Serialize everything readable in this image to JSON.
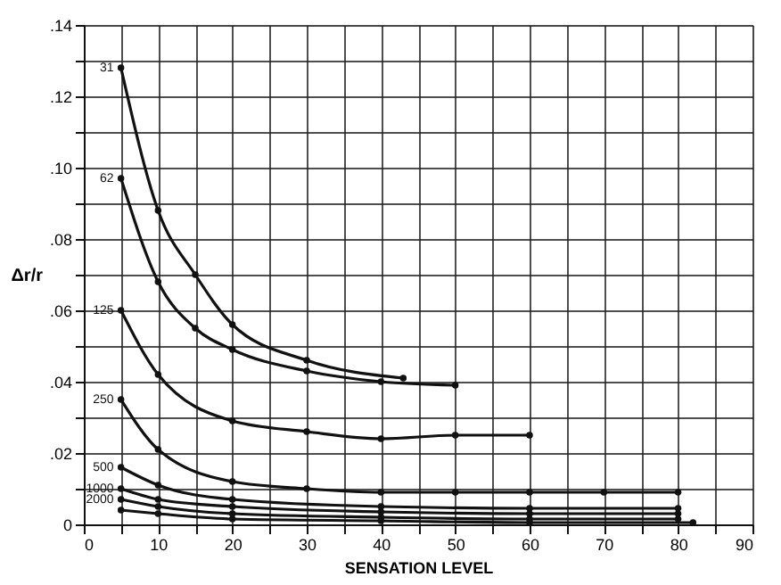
{
  "chart_data": {
    "type": "line",
    "xlabel": "SENSATION LEVEL",
    "ylabel": "Δr/r",
    "xlim": [
      0,
      90
    ],
    "ylim": [
      0,
      0.14
    ],
    "xticks": [
      0,
      {
        "value": 5,
        "label": null
      },
      10,
      {
        "value": 15,
        "label": null
      },
      20,
      {
        "value": 25,
        "label": null
      },
      30,
      {
        "value": 35,
        "label": null
      },
      40,
      {
        "value": 45,
        "label": null
      },
      50,
      {
        "value": 55,
        "label": null
      },
      60,
      {
        "value": 65,
        "label": null
      },
      70,
      {
        "value": 75,
        "label": null
      },
      80,
      {
        "value": 85,
        "label": null
      },
      90
    ],
    "yticks": [
      0,
      {
        "value": 0.01,
        "label": null
      },
      {
        "value": 0.02,
        "label": ".02"
      },
      {
        "value": 0.03,
        "label": null
      },
      {
        "value": 0.04,
        "label": ".04"
      },
      {
        "value": 0.05,
        "label": null
      },
      {
        "value": 0.06,
        "label": ".06"
      },
      {
        "value": 0.07,
        "label": null
      },
      {
        "value": 0.08,
        "label": ".08"
      },
      {
        "value": 0.09,
        "label": null
      },
      {
        "value": 0.1,
        "label": ".10"
      },
      {
        "value": 0.11,
        "label": null
      },
      {
        "value": 0.12,
        "label": ".12"
      },
      {
        "value": 0.13,
        "label": null
      },
      {
        "value": 0.14,
        "label": ".14"
      }
    ],
    "grid": true,
    "marker": "circle",
    "line_style": "solid",
    "series": [
      {
        "name": "31",
        "color": "#111111",
        "x": [
          5,
          10,
          15,
          20,
          30,
          43
        ],
        "values": [
          0.128,
          0.088,
          0.07,
          0.056,
          0.046,
          0.041
        ]
      },
      {
        "name": "62",
        "color": "#111111",
        "x": [
          5,
          10,
          15,
          20,
          30,
          40,
          50
        ],
        "values": [
          0.097,
          0.068,
          0.055,
          0.049,
          0.043,
          0.04,
          0.039
        ]
      },
      {
        "name": "125",
        "color": "#111111",
        "x": [
          5,
          10,
          20,
          30,
          40,
          50,
          60
        ],
        "values": [
          0.06,
          0.042,
          0.029,
          0.026,
          0.024,
          0.025,
          0.025
        ]
      },
      {
        "name": "250",
        "color": "#111111",
        "x": [
          5,
          10,
          20,
          30,
          40,
          50,
          60,
          70,
          80
        ],
        "values": [
          0.035,
          0.021,
          0.012,
          0.01,
          0.009,
          0.009,
          0.009,
          0.009,
          0.009
        ]
      },
      {
        "name": "500",
        "color": "#111111",
        "x": [
          5,
          10,
          20,
          40,
          60,
          80
        ],
        "values": [
          0.016,
          0.011,
          0.007,
          0.005,
          0.0045,
          0.0045
        ]
      },
      {
        "name": "1000",
        "color": "#111111",
        "x": [
          5,
          10,
          20,
          40,
          60,
          80
        ],
        "values": [
          0.01,
          0.007,
          0.005,
          0.0035,
          0.003,
          0.003
        ]
      },
      {
        "name": "2000",
        "color": "#111111",
        "x": [
          5,
          10,
          20,
          40,
          60,
          80
        ],
        "values": [
          0.007,
          0.005,
          0.003,
          0.002,
          0.0015,
          0.0015
        ]
      },
      {
        "color": "#111111",
        "x": [
          5,
          10,
          20,
          40,
          60,
          82
        ],
        "values": [
          0.004,
          0.003,
          0.0015,
          0.001,
          0.0005,
          0.0005
        ]
      }
    ]
  }
}
